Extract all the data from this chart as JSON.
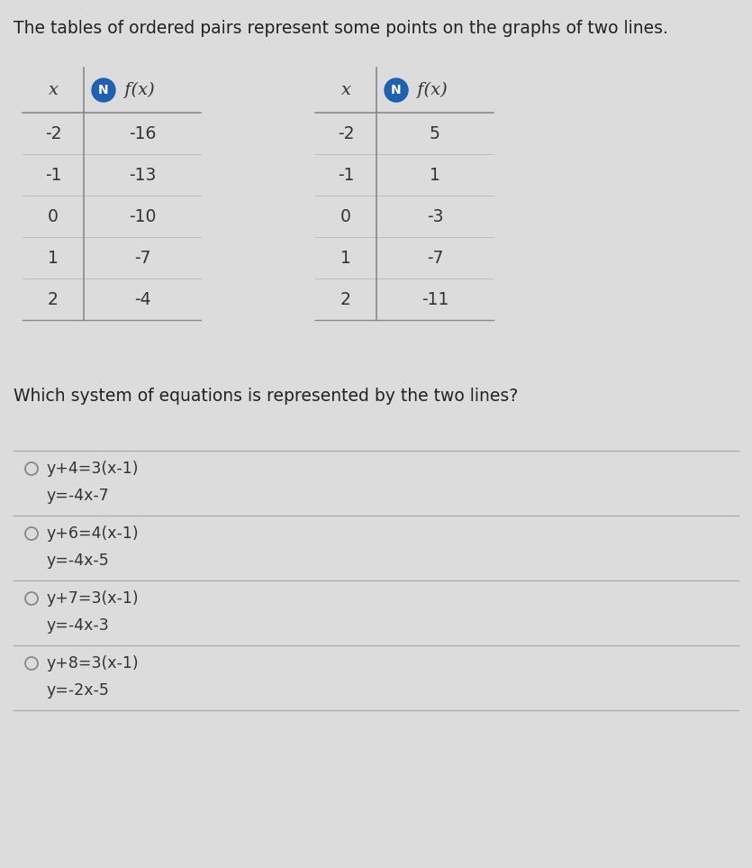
{
  "background_color": "#dcdcdc",
  "title": "The tables of ordered pairs represent some points on the graphs of two lines.",
  "title_fontsize": 13.5,
  "table1_rows": [
    [
      "-2",
      "-16"
    ],
    [
      "-1",
      "-13"
    ],
    [
      "0",
      "-10"
    ],
    [
      "1",
      "-7"
    ],
    [
      "2",
      "-4"
    ]
  ],
  "table2_rows": [
    [
      "-2",
      "5"
    ],
    [
      "-1",
      "1"
    ],
    [
      "0",
      "-3"
    ],
    [
      "1",
      "-7"
    ],
    [
      "2",
      "-11"
    ]
  ],
  "question": "Which system of equations is represented by the two lines?",
  "question_fontsize": 13.5,
  "options": [
    [
      "y+4=3(x-1)",
      "y=-4x-7"
    ],
    [
      "y+6=4(x-1)",
      "y=-4x-5"
    ],
    [
      "y+7=3(x-1)",
      "y=-4x-3"
    ],
    [
      "y+8=3(x-1)",
      "y=-2x-5"
    ]
  ],
  "option_fontsize": 12.5,
  "N_color": "#2060b0",
  "table_line_color": "#888888",
  "option_bg": "#e8e8e8",
  "option_line_color": "#aaaaaa",
  "radio_color": "#888888"
}
